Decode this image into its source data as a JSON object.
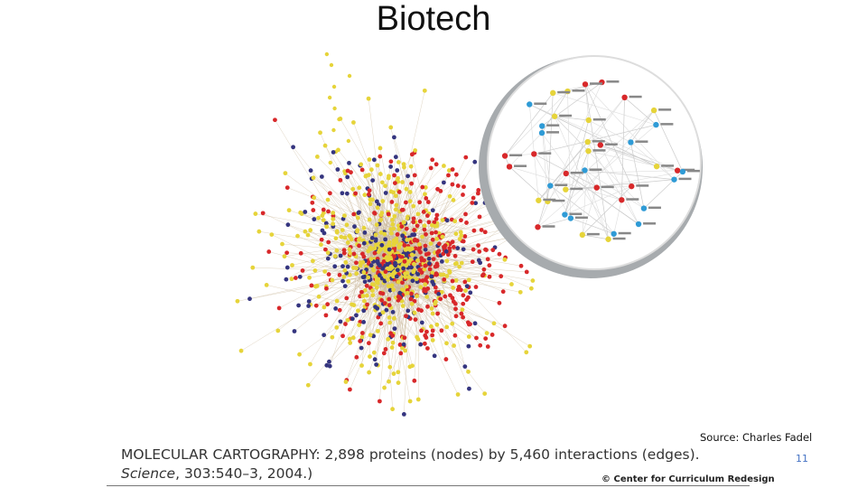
{
  "slide": {
    "title": "Biotech",
    "caption": {
      "line1": "MOLECULAR CARTOGRAPHY: 2,898 proteins (nodes) by 5,460 interactions (edges).",
      "journal": "Science",
      "rest": ", 303:540–3, 2004.)"
    },
    "source": "Source: Charles Fadel",
    "page_number": "11",
    "copyright": "© Center for Curriculum Redesign"
  }
}
